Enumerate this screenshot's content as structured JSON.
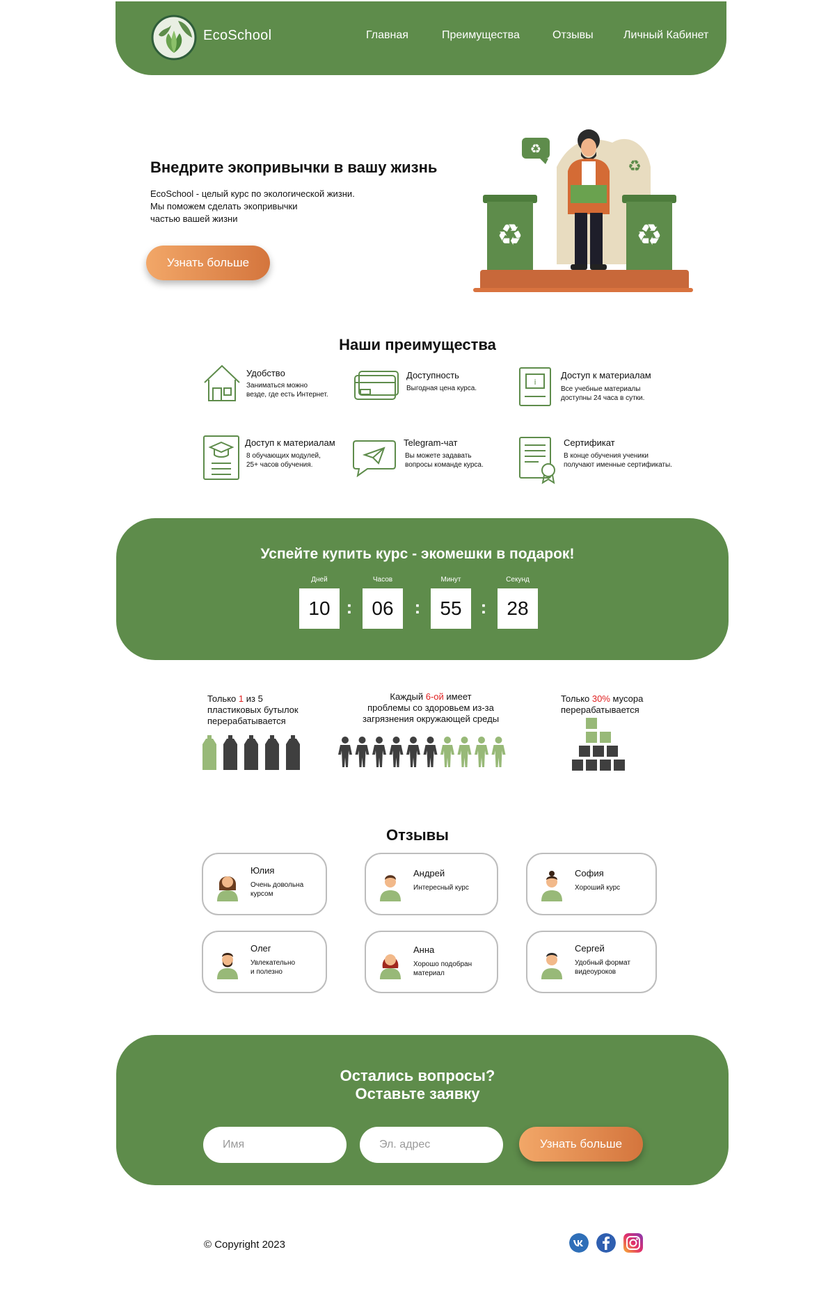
{
  "header": {
    "brand": "EcoSchool",
    "nav": [
      "Главная",
      "Преимущества",
      "Отзывы",
      "Личный Кабинет"
    ]
  },
  "hero": {
    "title": "Внедрите экопривычки в вашу жизнь",
    "text_lines": [
      "EcoSchool - целый курс по экологической жизни.",
      "Мы поможем сделать экопривычки",
      "частью вашей жизни"
    ],
    "button": "Узнать больше"
  },
  "advantages": {
    "title": "Наши преимущества",
    "items": [
      {
        "title": "Удобство",
        "lines": [
          "Заниматься можно",
          "везде, где есть Интернет."
        ],
        "icon": "house-icon"
      },
      {
        "title": "Доступность",
        "lines": [
          "Выгодная цена курса."
        ],
        "icon": "credit-card-icon"
      },
      {
        "title": "Доступ к материалам",
        "lines": [
          "Все учебные материалы",
          "доступны 24 часа в сутки."
        ],
        "icon": "info-book-icon"
      },
      {
        "title": "Доступ к материалам",
        "lines": [
          "8 обучающих модулей,",
          "25+ часов обучения."
        ],
        "icon": "graduation-book-icon"
      },
      {
        "title": "Telegram-чат",
        "lines": [
          "Вы можете задавать",
          "вопросы команде курса."
        ],
        "icon": "telegram-chat-icon"
      },
      {
        "title": "Сертификат",
        "lines": [
          "В конце обучения ученики",
          "получают именные сертификаты."
        ],
        "icon": "certificate-icon"
      }
    ]
  },
  "timer": {
    "title": "Успейте купить курс - экомешки в подарок!",
    "units": [
      {
        "label": "Дней",
        "value": "10"
      },
      {
        "label": "Часов",
        "value": "06"
      },
      {
        "label": "Минут",
        "value": "55"
      },
      {
        "label": "Секунд",
        "value": "28"
      }
    ],
    "separator": ":"
  },
  "stats": [
    {
      "pre": "Только ",
      "highlight": "1",
      "post": " из 5",
      "lines": [
        "пластиковых бутылок",
        "перерабатывается"
      ],
      "recycled_count": 1,
      "total_count": 5
    },
    {
      "pre": "Каждый ",
      "highlight": "6-ой",
      "post": " имеет",
      "lines": [
        "проблемы со здоровьем из-за",
        "загрязнения окружающей среды"
      ],
      "dark_count": 6,
      "total_count": 10
    },
    {
      "pre": "Только ",
      "highlight": "30%",
      "post": " мусора",
      "lines": [
        "перерабатывается"
      ],
      "recycled_percent": 30
    }
  ],
  "reviews": {
    "title": "Отзывы",
    "items": [
      {
        "name": "Юлия",
        "lines": [
          "Очень довольна",
          "курсом"
        ]
      },
      {
        "name": "Андрей",
        "lines": [
          "Интересный курс"
        ]
      },
      {
        "name": "София",
        "lines": [
          "Хороший курс"
        ]
      },
      {
        "name": "Олег",
        "lines": [
          "Увлекательно",
          "и полезно"
        ]
      },
      {
        "name": "Анна",
        "lines": [
          "Хорошо подобран",
          "материал"
        ]
      },
      {
        "name": "Сергей",
        "lines": [
          "Удобный формат",
          "видеоуроков"
        ]
      }
    ]
  },
  "contact": {
    "title_lines": [
      "Остались вопросы?",
      "Оставьте заявку"
    ],
    "name_placeholder": "Имя",
    "email_placeholder": "Эл. адрес",
    "button": "Узнать больше"
  },
  "footer": {
    "copyright": "© Copyright 2023",
    "socials": [
      "vk-icon",
      "facebook-icon",
      "instagram-icon"
    ]
  },
  "colors": {
    "green": "#5e8c4b",
    "light_green": "#98b978",
    "orange": "#e08b4f",
    "dark": "#3f3f3f",
    "highlight_red": "#e02020"
  }
}
